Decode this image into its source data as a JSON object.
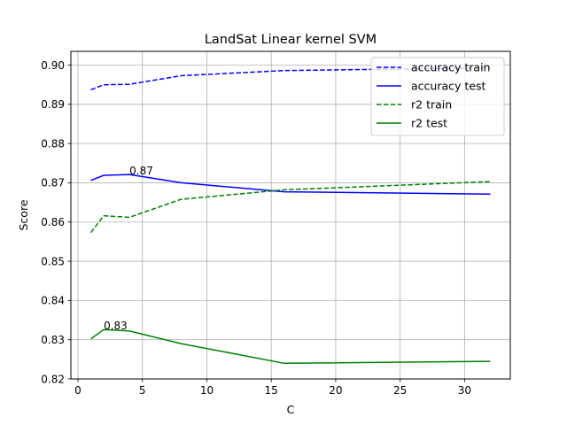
{
  "chart_data": {
    "type": "line",
    "title": "LandSat Linear kernel SVM",
    "xlabel": "C",
    "ylabel": "Score",
    "xlim": [
      -0.55,
      33.55
    ],
    "ylim": [
      0.82,
      0.9035
    ],
    "xticks": [
      0,
      5,
      10,
      15,
      20,
      25,
      30
    ],
    "yticks": [
      0.82,
      0.83,
      0.84,
      0.85,
      0.86,
      0.87,
      0.88,
      0.89,
      0.9
    ],
    "ytick_labels": [
      "0.82",
      "0.83",
      "0.84",
      "0.85",
      "0.86",
      "0.87",
      "0.88",
      "0.89",
      "0.90"
    ],
    "grid": true,
    "legend_position": "top-right",
    "x": [
      1,
      2,
      4,
      8,
      16,
      32
    ],
    "series": [
      {
        "name": "accuracy train",
        "color": "#0000ff",
        "dash": true,
        "values": [
          0.8937,
          0.895,
          0.8951,
          0.8973,
          0.8986,
          0.8993
        ]
      },
      {
        "name": "accuracy test",
        "color": "#0000ff",
        "dash": false,
        "values": [
          0.8706,
          0.8719,
          0.8721,
          0.87,
          0.8677,
          0.8671
        ]
      },
      {
        "name": "r2 train",
        "color": "#008000",
        "dash": true,
        "values": [
          0.8573,
          0.8616,
          0.8612,
          0.8658,
          0.8682,
          0.8703
        ]
      },
      {
        "name": "r2 test",
        "color": "#008000",
        "dash": false,
        "values": [
          0.8302,
          0.8326,
          0.8322,
          0.829,
          0.824,
          0.8245
        ]
      }
    ],
    "annotations": [
      {
        "text": "0.87",
        "x": 4,
        "y": 0.8721
      },
      {
        "text": "0.83",
        "x": 2,
        "y": 0.8326
      }
    ]
  }
}
